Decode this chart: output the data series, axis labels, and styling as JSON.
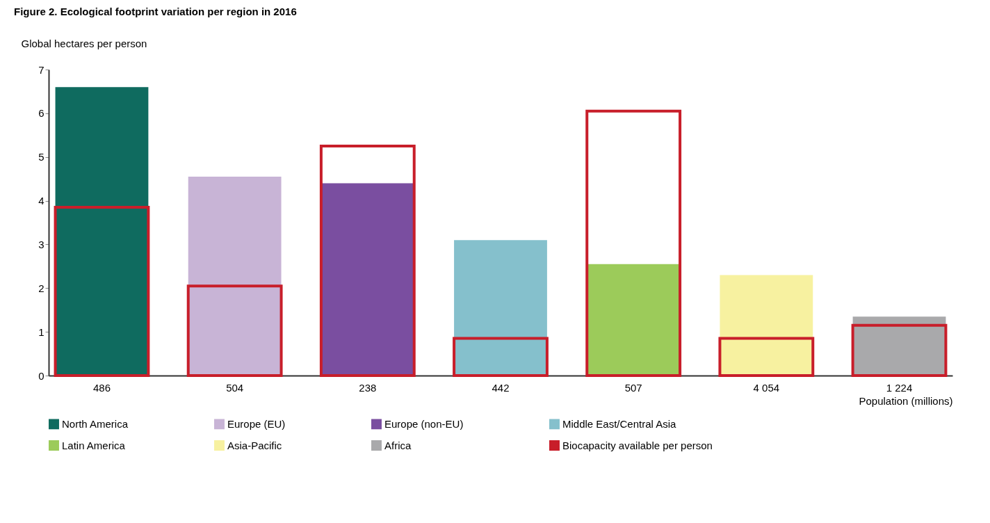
{
  "chart_data": {
    "type": "bar",
    "title": "Figure 2. Ecological footprint variation per region in 2016",
    "ylabel": "Global hectares per person",
    "xlabel": "Population (millions)",
    "categories": [
      "486",
      "504",
      "238",
      "442",
      "507",
      "4 054",
      "1 224"
    ],
    "series": [
      {
        "name": "North America",
        "color": "#0f6b5f",
        "values": [
          6.6,
          null,
          null,
          null,
          null,
          null,
          null
        ]
      },
      {
        "name": "Europe (EU)",
        "color": "#c8b4d6",
        "values": [
          null,
          4.55,
          null,
          null,
          null,
          null,
          null
        ]
      },
      {
        "name": "Europe (non-EU)",
        "color": "#7a4ea0",
        "values": [
          null,
          null,
          4.4,
          null,
          null,
          null,
          null
        ]
      },
      {
        "name": "Middle East/Central Asia",
        "color": "#85c0cc",
        "values": [
          null,
          null,
          null,
          3.1,
          null,
          null,
          null
        ]
      },
      {
        "name": "Latin America",
        "color": "#9ccb5a",
        "values": [
          null,
          null,
          null,
          null,
          2.55,
          null,
          null
        ]
      },
      {
        "name": "Asia-Pacific",
        "color": "#f7f1a0",
        "values": [
          null,
          null,
          null,
          null,
          null,
          2.3,
          null
        ]
      },
      {
        "name": "Africa",
        "color": "#a9a9ab",
        "values": [
          null,
          null,
          null,
          null,
          null,
          null,
          1.35
        ]
      },
      {
        "name": "Biocapacity available per person",
        "color": "#c81e2a",
        "values": [
          3.85,
          2.05,
          5.25,
          0.85,
          6.05,
          0.85,
          1.15
        ]
      }
    ],
    "ylim": [
      0,
      7
    ],
    "yticks": [
      0,
      1,
      2,
      3,
      4,
      5,
      6,
      7
    ],
    "grid": false,
    "legend": "bottom"
  }
}
